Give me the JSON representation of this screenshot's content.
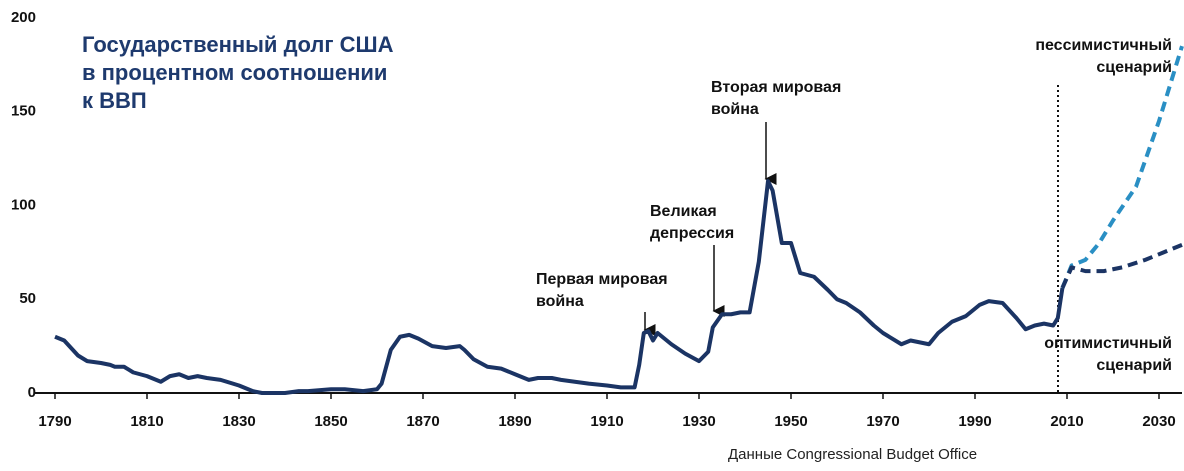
{
  "chart_data": {
    "type": "line",
    "title": [
      "Государственный долг США",
      "в процентном соотношении",
      "к ВВП"
    ],
    "source": "Данные Congressional Budget Office",
    "xlim": [
      1790,
      2035
    ],
    "xticks": [
      1790,
      1810,
      1830,
      1850,
      1870,
      1890,
      1910,
      1930,
      1950,
      1970,
      1990,
      2010,
      2030
    ],
    "ylim": [
      0,
      200
    ],
    "yticks": [
      0,
      50,
      100,
      150,
      200
    ],
    "series": [
      {
        "color": "#1b3464",
        "dash": false,
        "x": [
          1790,
          1792,
          1795,
          1797,
          1800,
          1802,
          1803,
          1805,
          1807,
          1810,
          1812,
          1813,
          1815,
          1817,
          1819,
          1821,
          1823,
          1826,
          1830,
          1833,
          1835,
          1840,
          1843,
          1845,
          1850,
          1853,
          1857,
          1860,
          1861,
          1863,
          1865,
          1867,
          1869,
          1872,
          1875,
          1878,
          1879,
          1881,
          1884,
          1887,
          1890,
          1893,
          1895,
          1898,
          1900,
          1903,
          1906,
          1910,
          1913,
          1916,
          1917,
          1918,
          1919,
          1920,
          1921,
          1922,
          1924,
          1927,
          1930,
          1932,
          1933,
          1935,
          1937,
          1939,
          1941,
          1943,
          1945,
          1946,
          1948,
          1950,
          1952,
          1955,
          1958,
          1960,
          1962,
          1965,
          1968,
          1970,
          1974,
          1976,
          1978,
          1980,
          1982,
          1985,
          1988,
          1991,
          1993,
          1996,
          1999,
          2001,
          2003,
          2005,
          2007,
          2008,
          2009
        ],
        "values": [
          30,
          28,
          20,
          17,
          16,
          15,
          14,
          14,
          11,
          9,
          7,
          6,
          9,
          10,
          8,
          9,
          8,
          7,
          4,
          1,
          0,
          0,
          1,
          1,
          2,
          2,
          1,
          2,
          5,
          23,
          30,
          31,
          29,
          25,
          24,
          25,
          23,
          18,
          14,
          13,
          10,
          7,
          8,
          8,
          7,
          6,
          5,
          4,
          3,
          3,
          15,
          32,
          33,
          28,
          32,
          30,
          26,
          21,
          17,
          22,
          35,
          42,
          42,
          43,
          43,
          70,
          113,
          108,
          80,
          80,
          64,
          62,
          55,
          50,
          48,
          43,
          36,
          32,
          26,
          28,
          27,
          26,
          32,
          38,
          41,
          47,
          49,
          48,
          40,
          34,
          36,
          37,
          36,
          40,
          56
        ]
      },
      {
        "color": "#2a8fc4",
        "dash": true,
        "x": [
          2009,
          2011,
          2014,
          2017,
          2020,
          2025,
          2030,
          2035
        ],
        "values": [
          56,
          68,
          71,
          80,
          92,
          110,
          145,
          185
        ]
      },
      {
        "color": "#1b3464",
        "dash": true,
        "x": [
          2009,
          2011,
          2014,
          2018,
          2022,
          2027,
          2031,
          2035
        ],
        "values": [
          56,
          67,
          65,
          65,
          67,
          71,
          75,
          79
        ]
      }
    ],
    "annotations": [
      {
        "lines": [
          "Первая мировая",
          "война"
        ]
      },
      {
        "lines": [
          "Великая",
          "депрессия"
        ]
      },
      {
        "lines": [
          "Вторая мировая",
          "война"
        ]
      },
      {
        "lines": [
          "пессимистичный",
          "сценарий"
        ]
      },
      {
        "lines": [
          "оптимистичный",
          "сценарий"
        ]
      }
    ]
  }
}
